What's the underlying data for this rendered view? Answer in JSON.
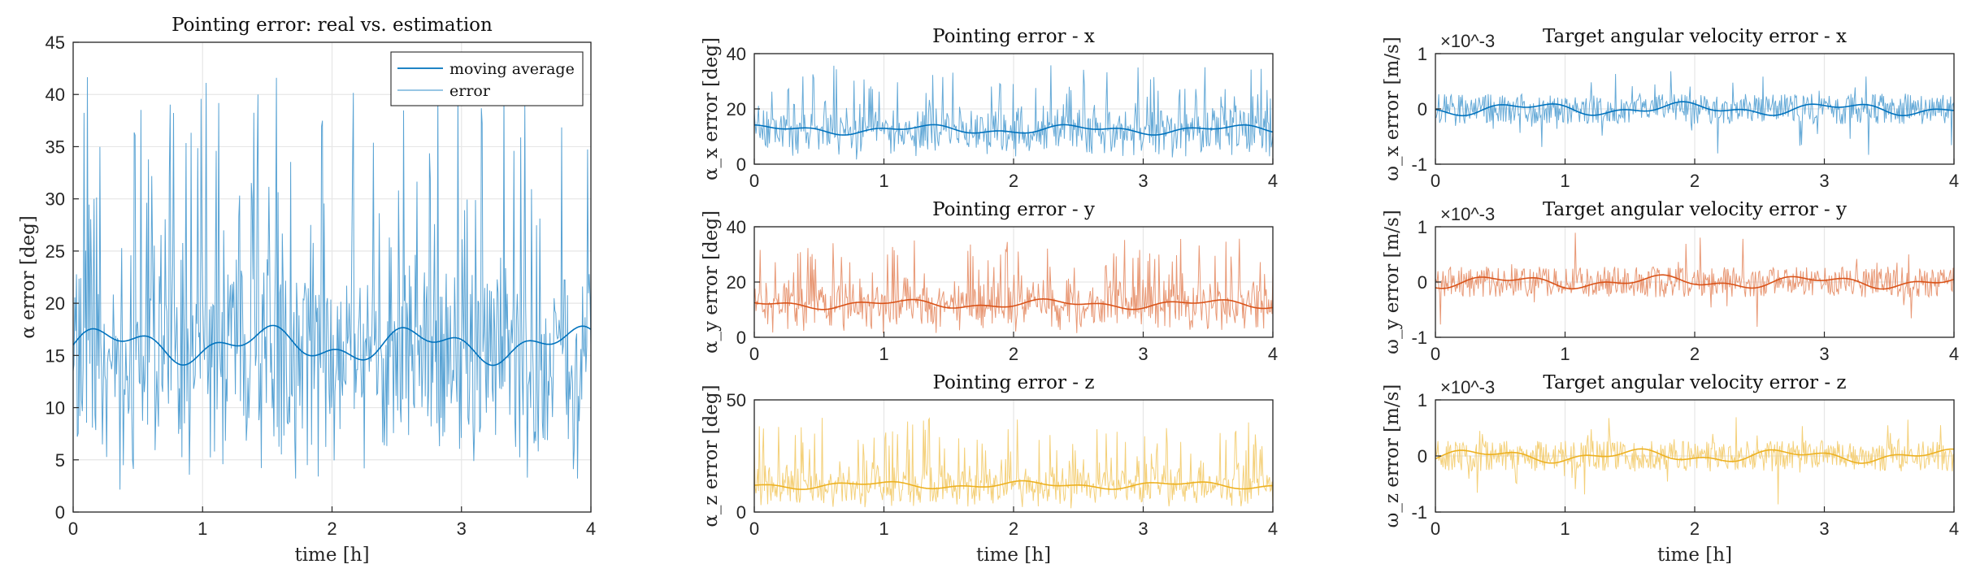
{
  "chart_data": [
    {
      "id": "main",
      "type": "line",
      "title": "Pointing error: real vs. estimation",
      "xlabel": "time [h]",
      "ylabel": "α error [deg]",
      "xlim": [
        0,
        4
      ],
      "ylim": [
        0,
        45
      ],
      "xticks": [
        0,
        1,
        2,
        3,
        4
      ],
      "yticks": [
        0,
        5,
        10,
        15,
        20,
        25,
        30,
        35,
        40,
        45
      ],
      "grid": true,
      "legend": "top-right",
      "series": [
        {
          "name": "moving average",
          "color": "#0072BD",
          "mean": 16,
          "amp": 1.5
        },
        {
          "name": "error",
          "color": "#0072BD",
          "noise": true,
          "min": 2,
          "max": 42,
          "mean": 16
        }
      ]
    },
    {
      "id": "px",
      "type": "line",
      "title": "Pointing error - x",
      "xlabel": "",
      "ylabel": "α_x error [deg]",
      "xlim": [
        0,
        4
      ],
      "ylim": [
        0,
        40
      ],
      "xticks": [
        0,
        1,
        2,
        3,
        4
      ],
      "yticks": [
        0,
        20,
        40
      ],
      "grid": true,
      "color": "#0072BD",
      "series": [
        {
          "mean": 12.5,
          "amp": 1.5,
          "min": 1,
          "max": 36
        }
      ]
    },
    {
      "id": "py",
      "type": "line",
      "title": "Pointing error - y",
      "xlabel": "",
      "ylabel": "α_y error [deg]",
      "xlim": [
        0,
        4
      ],
      "ylim": [
        0,
        40
      ],
      "xticks": [
        0,
        1,
        2,
        3,
        4
      ],
      "yticks": [
        0,
        20,
        40
      ],
      "grid": true,
      "color": "#D95319",
      "series": [
        {
          "mean": 12,
          "amp": 1.5,
          "min": 1,
          "max": 36
        }
      ]
    },
    {
      "id": "pz",
      "type": "line",
      "title": "Pointing error - z",
      "xlabel": "time [h]",
      "ylabel": "α_z error [deg]",
      "xlim": [
        0,
        4
      ],
      "ylim": [
        0,
        50
      ],
      "xticks": [
        0,
        1,
        2,
        3,
        4
      ],
      "yticks": [
        0,
        50
      ],
      "grid": true,
      "color": "#EDB120",
      "series": [
        {
          "mean": 12,
          "amp": 1.5,
          "min": 1,
          "max": 42
        }
      ]
    },
    {
      "id": "wx",
      "type": "line",
      "title": "Target angular velocity error - x",
      "xlabel": "",
      "ylabel": "ω_x error [m/s]",
      "xlim": [
        0,
        4
      ],
      "ylim": [
        -1,
        1
      ],
      "yexponent": "×10^-3",
      "xticks": [
        0,
        1,
        2,
        3,
        4
      ],
      "yticks": [
        -1,
        0,
        1
      ],
      "grid": true,
      "color": "#0072BD",
      "series": [
        {
          "mean": 0,
          "amp": 0.1,
          "min": -0.9,
          "max": 0.8
        }
      ]
    },
    {
      "id": "wy",
      "type": "line",
      "title": "Target angular velocity error - y",
      "xlabel": "",
      "ylabel": "ω_y error [m/s]",
      "xlim": [
        0,
        4
      ],
      "ylim": [
        -1,
        1
      ],
      "yexponent": "×10^-3",
      "xticks": [
        0,
        1,
        2,
        3,
        4
      ],
      "yticks": [
        -1,
        0,
        1
      ],
      "grid": true,
      "color": "#D95319",
      "series": [
        {
          "mean": 0,
          "amp": 0.1,
          "min": -0.9,
          "max": 1.05
        }
      ]
    },
    {
      "id": "wz",
      "type": "line",
      "title": "Target angular velocity error - z",
      "xlabel": "time [h]",
      "ylabel": "ω_z error [m/s]",
      "xlim": [
        0,
        4
      ],
      "ylim": [
        -1,
        1
      ],
      "yexponent": "×10^-3",
      "xticks": [
        0,
        1,
        2,
        3,
        4
      ],
      "yticks": [
        -1,
        0,
        1
      ],
      "grid": true,
      "color": "#EDB120",
      "series": [
        {
          "mean": 0,
          "amp": 0.1,
          "min": -1,
          "max": 0.9
        }
      ]
    }
  ]
}
